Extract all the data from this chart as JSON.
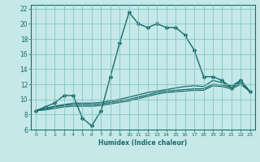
{
  "title": "",
  "xlabel": "Humidex (Indice chaleur)",
  "bg_color": "#c5e8e8",
  "grid_color": "#7abfbf",
  "line_color": "#1a6b6b",
  "xlim": [
    -0.5,
    23.5
  ],
  "ylim": [
    6,
    22.5
  ],
  "xticks": [
    0,
    1,
    2,
    3,
    4,
    5,
    6,
    7,
    8,
    9,
    10,
    11,
    12,
    13,
    14,
    15,
    16,
    17,
    18,
    19,
    20,
    21,
    22,
    23
  ],
  "yticks": [
    6,
    8,
    10,
    12,
    14,
    16,
    18,
    20,
    22
  ],
  "series": [
    {
      "x": [
        0,
        1,
        2,
        3,
        4,
        5,
        6,
        7,
        8,
        9,
        10,
        11,
        12,
        13,
        14,
        15,
        16,
        17,
        18,
        19,
        20,
        21,
        22,
        23
      ],
      "y": [
        8.5,
        9.0,
        9.5,
        10.5,
        10.5,
        7.5,
        6.5,
        8.5,
        13.0,
        17.5,
        21.5,
        20.0,
        19.5,
        20.0,
        19.5,
        19.5,
        18.5,
        16.5,
        13.0,
        13.0,
        12.5,
        11.5,
        12.5,
        11.0
      ],
      "marker": "D",
      "markersize": 2.0,
      "linewidth": 1.0,
      "linestyle": "-"
    },
    {
      "x": [
        0,
        1,
        2,
        3,
        4,
        5,
        6,
        7,
        8,
        9,
        10,
        11,
        12,
        13,
        14,
        15,
        16,
        17,
        18,
        19,
        20,
        21,
        22,
        23
      ],
      "y": [
        8.5,
        8.8,
        9.1,
        9.3,
        9.5,
        9.5,
        9.5,
        9.6,
        9.8,
        10.0,
        10.3,
        10.6,
        10.9,
        11.1,
        11.3,
        11.5,
        11.7,
        11.8,
        11.7,
        12.5,
        12.2,
        11.8,
        12.5,
        11.0
      ],
      "marker": null,
      "markersize": 0,
      "linewidth": 0.9,
      "linestyle": "-"
    },
    {
      "x": [
        0,
        1,
        2,
        3,
        4,
        5,
        6,
        7,
        8,
        9,
        10,
        11,
        12,
        13,
        14,
        15,
        16,
        17,
        18,
        19,
        20,
        21,
        22,
        23
      ],
      "y": [
        8.5,
        8.7,
        9.0,
        9.2,
        9.3,
        9.3,
        9.3,
        9.4,
        9.6,
        9.8,
        10.0,
        10.3,
        10.6,
        10.9,
        11.1,
        11.2,
        11.3,
        11.4,
        11.4,
        12.0,
        11.9,
        11.6,
        12.2,
        11.0
      ],
      "marker": null,
      "markersize": 0,
      "linewidth": 0.9,
      "linestyle": "-"
    },
    {
      "x": [
        0,
        1,
        2,
        3,
        4,
        5,
        6,
        7,
        8,
        9,
        10,
        11,
        12,
        13,
        14,
        15,
        16,
        17,
        18,
        19,
        20,
        21,
        22,
        23
      ],
      "y": [
        8.5,
        8.6,
        8.8,
        9.0,
        9.1,
        9.1,
        9.1,
        9.2,
        9.4,
        9.6,
        9.8,
        10.1,
        10.4,
        10.7,
        10.9,
        11.0,
        11.1,
        11.2,
        11.2,
        11.8,
        11.7,
        11.4,
        12.0,
        11.0
      ],
      "marker": null,
      "markersize": 0,
      "linewidth": 0.9,
      "linestyle": "-"
    }
  ]
}
